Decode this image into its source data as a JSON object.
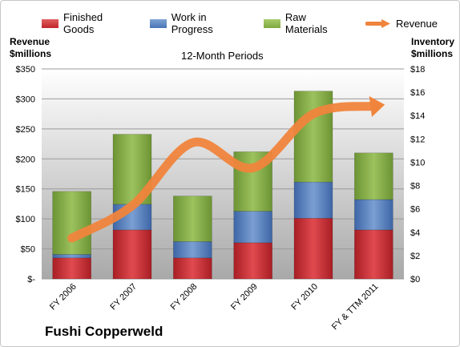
{
  "legend": {
    "finished_goods": "Finished Goods",
    "work_in_progress": "Work in Progress",
    "raw_materials": "Raw Materials",
    "revenue": "Revenue"
  },
  "axes": {
    "left_title_line1": "Revenue",
    "left_title_line2": "$millions",
    "right_title_line1": "Inventory",
    "right_title_line2": "$millions"
  },
  "plot_title": "12-Month Periods",
  "company": "Fushi Copperweld",
  "colors": {
    "finished_goods": "#c0272d",
    "work_in_progress": "#4a74b5",
    "raw_materials": "#7fa83e",
    "revenue": "#f0843c"
  },
  "chart_data": {
    "type": "bar",
    "stacked": true,
    "categories": [
      "FY 2006",
      "FY 2007",
      "FY 2008",
      "FY 2009",
      "FY 2010",
      "FY & TTM 2011"
    ],
    "series": [
      {
        "name": "Finished Goods",
        "axis": "right",
        "values": [
          1.8,
          4.2,
          1.8,
          3.1,
          5.2,
          4.2
        ]
      },
      {
        "name": "Work in Progress",
        "axis": "right",
        "values": [
          0.3,
          2.2,
          1.4,
          2.7,
          3.1,
          2.6
        ]
      },
      {
        "name": "Raw Materials",
        "axis": "right",
        "values": [
          5.4,
          6.0,
          3.9,
          5.1,
          7.8,
          4.0
        ]
      },
      {
        "name": "Revenue",
        "axis": "left",
        "type": "line",
        "values": [
          68,
          122,
          227,
          185,
          275,
          288
        ]
      }
    ],
    "left_axis": {
      "title": "Revenue $millions",
      "ylim": [
        0,
        350
      ],
      "ticks": [
        "$-",
        "$50",
        "$100",
        "$150",
        "$200",
        "$250",
        "$300",
        "$350"
      ]
    },
    "right_axis": {
      "title": "Inventory $millions",
      "ylim": [
        0,
        18
      ],
      "ticks": [
        "$0",
        "$2",
        "$4",
        "$6",
        "$8",
        "$10",
        "$12",
        "$14",
        "$16",
        "$18"
      ]
    },
    "title": "12-Month Periods",
    "grid": "horizontal",
    "legend_position": "top"
  }
}
